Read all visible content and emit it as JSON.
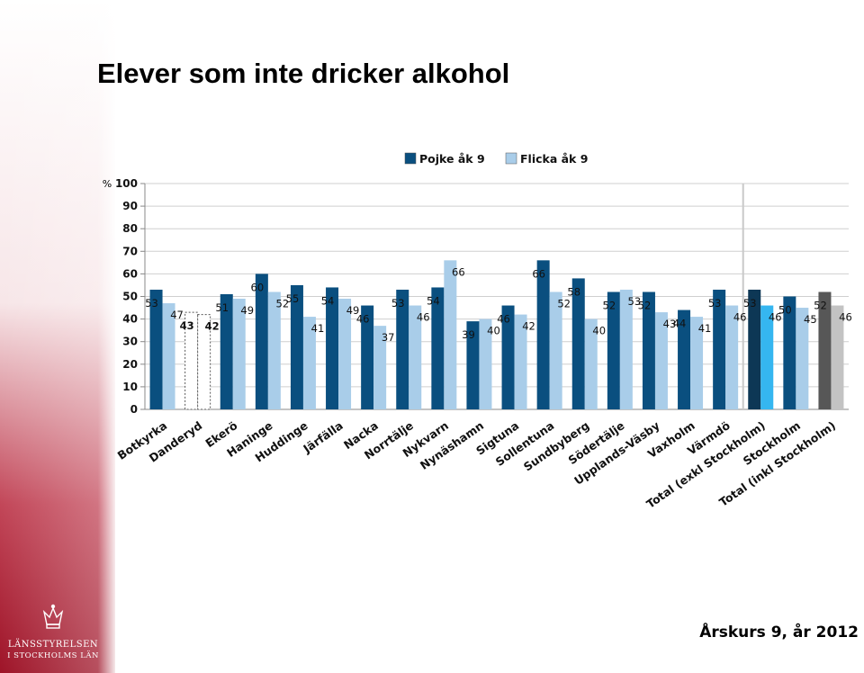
{
  "page": {
    "title": "Elever som inte dricker alkohol",
    "footer": "Årskurs 9, år 2012",
    "organization_line1": "LÄNSSTYRELSEN",
    "organization_line2": "I STOCKHOLMS LÄN",
    "sidebar_color": "#a4172b"
  },
  "chart_data": {
    "type": "bar",
    "title": "Elever som inte dricker alkohol",
    "ylabel": "%",
    "xlabel": "",
    "ylim": [
      0,
      100
    ],
    "yticks": [
      0,
      10,
      20,
      30,
      40,
      50,
      60,
      70,
      80,
      90,
      100
    ],
    "grid": true,
    "legend": "top",
    "categories": [
      "Botkyrka",
      "Danderyd",
      "Ekerö",
      "Haninge",
      "Huddinge",
      "Järfälla",
      "Nacka",
      "Norrtälje",
      "Nykvarn",
      "Nynäshamn",
      "Sigtuna",
      "Sollentuna",
      "Sundbyberg",
      "Södertälje",
      "Upplands-Väsby",
      "Vaxholm",
      "Värmdö",
      "Total (exkl Stockholm)",
      "Stockholm",
      "Total (inkl Stockholm)"
    ],
    "series": [
      {
        "name": "Pojke åk 9",
        "color": "#0a4f7f",
        "values": [
          53,
          43,
          51,
          60,
          55,
          54,
          46,
          53,
          54,
          39,
          46,
          66,
          58,
          52,
          52,
          44,
          53,
          53,
          50,
          52
        ]
      },
      {
        "name": "Flicka åk 9",
        "color": "#a9cde9",
        "values": [
          47,
          42,
          49,
          52,
          41,
          49,
          37,
          46,
          66,
          40,
          42,
          52,
          40,
          53,
          43,
          41,
          46,
          46,
          45,
          46
        ]
      }
    ],
    "dashed_categories": [
      "Danderyd"
    ],
    "highlight": {
      "Total (exkl Stockholm)": {
        "pojke": "#0d3755",
        "flicka": "#35b6f0"
      },
      "Total (inkl Stockholm)": {
        "pojke": "#575757",
        "flicka": "#c3c3c3"
      }
    }
  }
}
